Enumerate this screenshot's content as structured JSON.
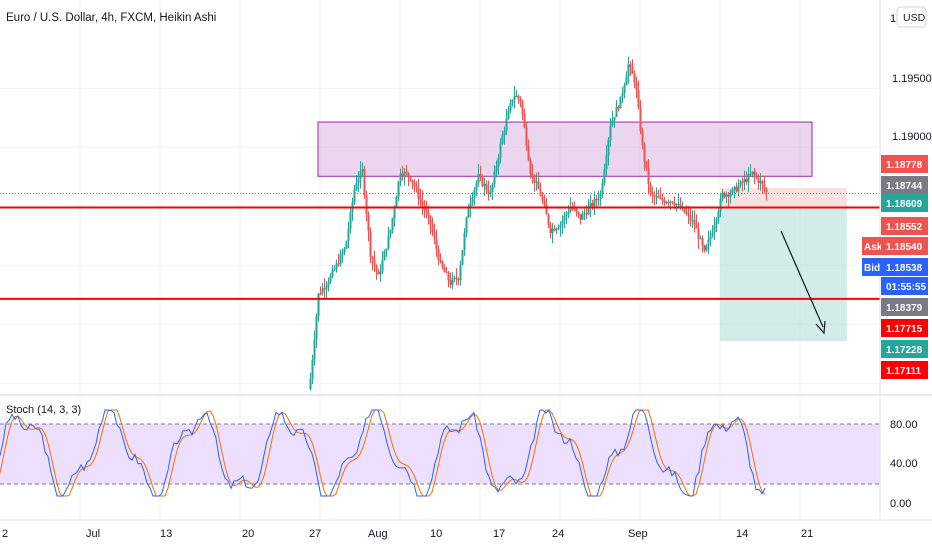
{
  "header": {
    "title": "Euro / U.S. Dollar, 4h, FXCM, Heikin Ashi",
    "currency_button": "USD"
  },
  "chart_data": {
    "type": "candlestick",
    "title": "Euro / U.S. Dollar, 4h, FXCM, Heikin Ashi",
    "price_axis": {
      "ticks": [
        "1.19500",
        "1.19000"
      ],
      "ylim": [
        1.169,
        1.2025
      ],
      "clipped_top_tick": "1"
    },
    "x_axis_labels": [
      "2",
      "Jul",
      "13",
      "20",
      "27",
      "Aug",
      "10",
      "17",
      "24",
      "Sep",
      "14",
      "21"
    ],
    "price_labels": [
      {
        "text": "1.18778",
        "value": 1.18778,
        "color": "#ef5350"
      },
      {
        "text": "1.18744",
        "value": 1.18744,
        "color": "#787b86"
      },
      {
        "text": "1.18609",
        "value": 1.18609,
        "color": "#26a69a"
      },
      {
        "text": "1.18552",
        "value": 1.18552,
        "color": "#ef5350"
      },
      {
        "text": "1.18540",
        "value": 1.1854,
        "color": "#ef5350"
      },
      {
        "text": "1.18538",
        "value": 1.18538,
        "color": "#2962ff"
      },
      {
        "text": "01:55:55",
        "value": 1.18457,
        "color": "#2962ff"
      },
      {
        "text": "1.18379",
        "value": 1.18379,
        "color": "#787b86"
      },
      {
        "text": "1.17715",
        "value": 1.17715,
        "color": "#ff0000"
      },
      {
        "text": "1.17228",
        "value": 1.17228,
        "color": "#26a69a"
      },
      {
        "text": "1.17111",
        "value": 1.17111,
        "color": "#ff0000"
      }
    ],
    "ask_label": "Ask",
    "bid_label": "Bid",
    "support_lines": [
      1.1849,
      1.17715
    ],
    "resistance_zone": [
      1.18755,
      1.19215
    ],
    "colors": {
      "up": "#26a69a",
      "down": "#ef5350",
      "zone": "#e1bee7",
      "support": "#ff0000",
      "stoch_k": "#2962ff",
      "stoch_d": "#ff6d00",
      "stoch_band": "#e6d2ff"
    },
    "stochastic": {
      "label": "Stoch (14, 3, 3)",
      "ticks": [
        "80.00",
        "40.00",
        "0.00"
      ],
      "upper": 80,
      "lower": 20
    }
  }
}
